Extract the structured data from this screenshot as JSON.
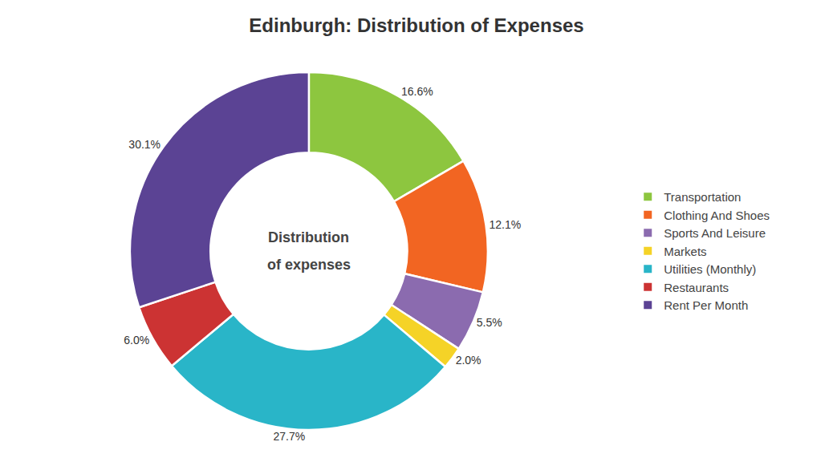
{
  "chart_data": {
    "type": "donut",
    "title": "Edinburgh: Distribution of Expenses",
    "categories": [
      "Transportation",
      "Clothing And Shoes",
      "Sports And Leisure",
      "Markets",
      "Utilities (Monthly)",
      "Restaurants",
      "Rent Per Month"
    ],
    "values": [
      16.6,
      12.1,
      5.5,
      2.0,
      27.7,
      6.0,
      30.1
    ],
    "value_labels": [
      "16.6%",
      "12.1%",
      "5.5%",
      "2.0%",
      "27.7%",
      "6.0%",
      "30.1%"
    ],
    "colors": [
      "#8dc63f",
      "#f26522",
      "#8b6baf",
      "#f5d327",
      "#29b5c8",
      "#cc3333",
      "#5b4394"
    ],
    "data_labels": true,
    "annotations": [
      "Distribution",
      "of expenses"
    ],
    "legend": "right"
  }
}
